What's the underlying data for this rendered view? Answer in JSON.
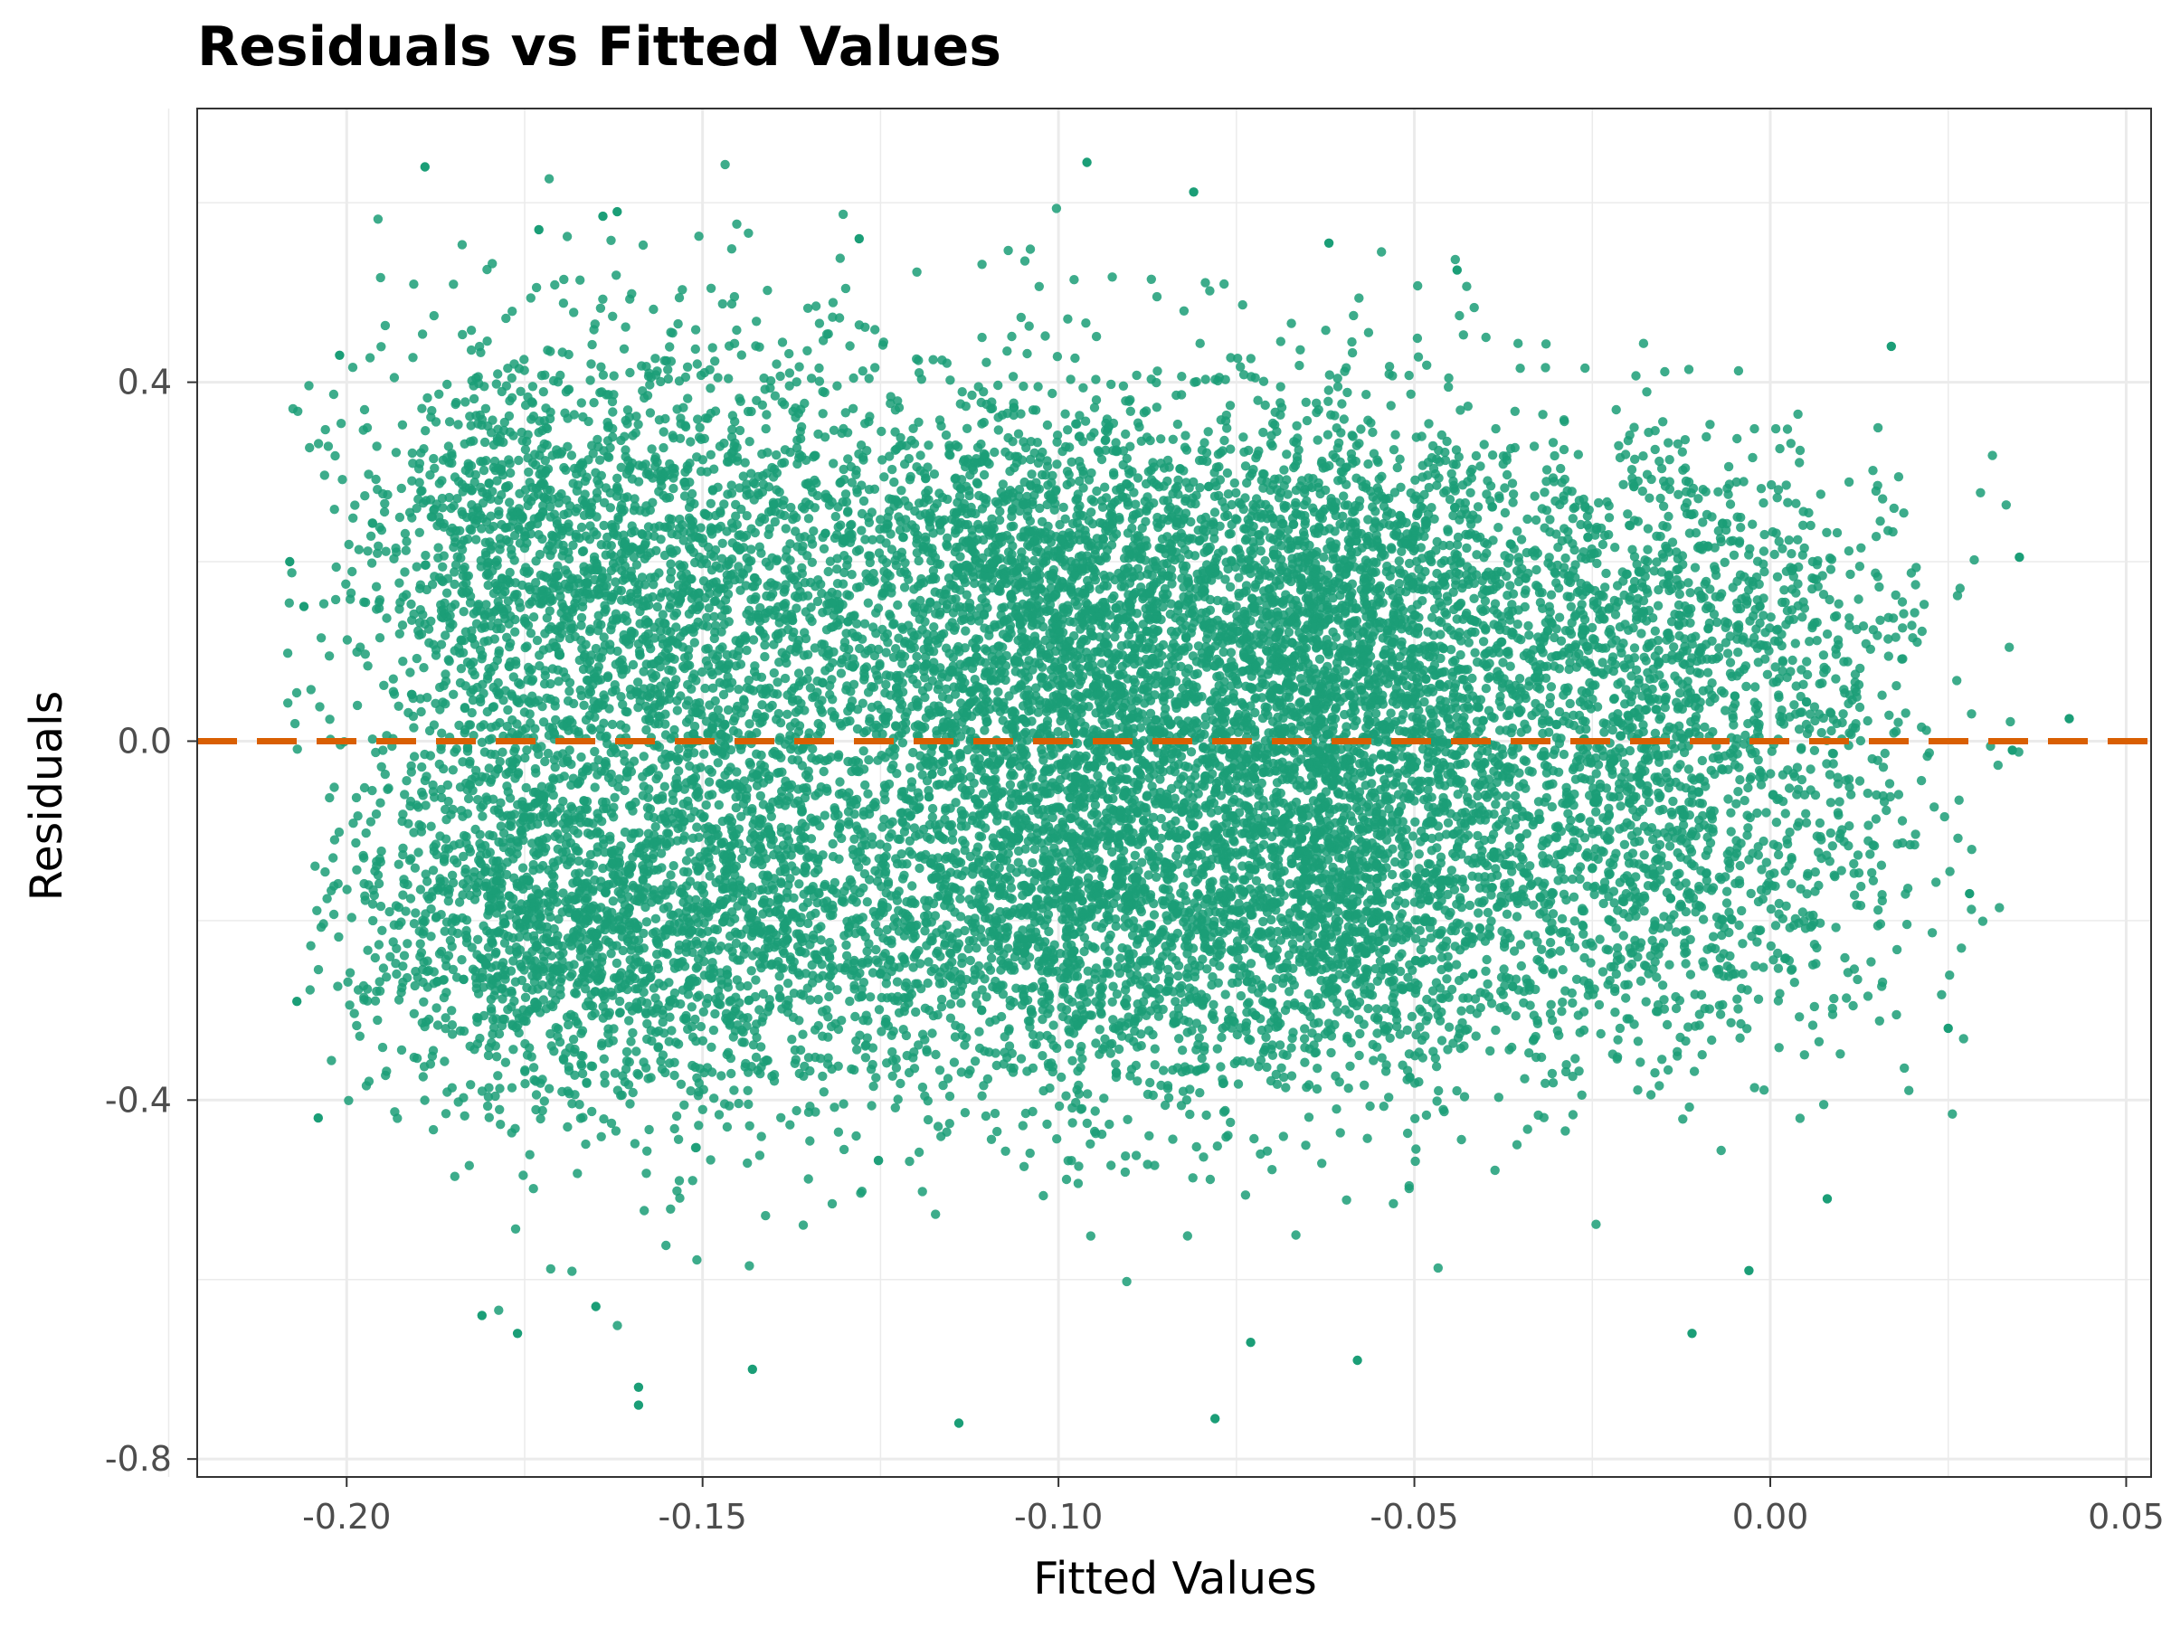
{
  "chart_data": {
    "type": "scatter",
    "title": "Residuals vs Fitted Values",
    "xlabel": "Fitted Values",
    "ylabel": "Residuals",
    "xlim": [
      -0.221,
      0.0535
    ],
    "ylim": [
      -0.82,
      0.705
    ],
    "x_ticks": [
      -0.2,
      -0.15,
      -0.1,
      -0.05,
      0.0,
      0.05
    ],
    "x_tick_labels": [
      "-0.20",
      "-0.15",
      "-0.10",
      "-0.05",
      "0.00",
      "0.05"
    ],
    "y_ticks": [
      -0.8,
      -0.4,
      0.0,
      0.4
    ],
    "y_tick_labels": [
      "-0.8",
      "-0.4",
      "0.0",
      "0.4"
    ],
    "grid": true,
    "point_color": "#1b9e77",
    "reference_line": {
      "y": 0.0,
      "style": "dashed",
      "color": "#d95f02"
    },
    "clusters": [
      {
        "x_center": -0.175,
        "x_sd": 0.013,
        "upper_y_center": 0.19,
        "upper_y_sd": 0.13,
        "lower_y_center": -0.19,
        "lower_y_sd": 0.11,
        "n": 2400
      },
      {
        "x_center": -0.145,
        "x_sd": 0.015,
        "upper_y_center": 0.18,
        "upper_y_sd": 0.14,
        "lower_y_center": -0.19,
        "lower_y_sd": 0.12,
        "n": 2600
      },
      {
        "x_center": -0.1,
        "x_sd": 0.016,
        "upper_y_center": 0.15,
        "upper_y_sd": 0.13,
        "lower_y_center": -0.16,
        "lower_y_sd": 0.13,
        "n": 4200
      },
      {
        "x_center": -0.06,
        "x_sd": 0.015,
        "upper_y_center": 0.14,
        "upper_y_sd": 0.12,
        "lower_y_center": -0.15,
        "lower_y_sd": 0.12,
        "n": 3800
      },
      {
        "x_center": -0.02,
        "x_sd": 0.013,
        "upper_y_center": 0.13,
        "upper_y_sd": 0.11,
        "lower_y_center": -0.14,
        "lower_y_sd": 0.12,
        "n": 1600
      },
      {
        "x_center": 0.005,
        "x_sd": 0.011,
        "upper_y_center": 0.12,
        "upper_y_sd": 0.1,
        "lower_y_center": -0.14,
        "lower_y_sd": 0.11,
        "n": 500
      }
    ],
    "outliers": [
      {
        "x": -0.189,
        "y": 0.64
      },
      {
        "x": -0.096,
        "y": 0.645
      },
      {
        "x": -0.081,
        "y": 0.612
      },
      {
        "x": -0.162,
        "y": 0.59
      },
      {
        "x": -0.164,
        "y": 0.585
      },
      {
        "x": -0.173,
        "y": 0.57
      },
      {
        "x": -0.062,
        "y": 0.555
      },
      {
        "x": -0.044,
        "y": 0.525
      },
      {
        "x": -0.128,
        "y": 0.56
      },
      {
        "x": 0.017,
        "y": 0.44
      },
      {
        "x": 0.035,
        "y": 0.205
      },
      {
        "x": 0.042,
        "y": 0.025
      },
      {
        "x": 0.034,
        "y": -0.01
      },
      {
        "x": 0.028,
        "y": -0.17
      },
      {
        "x": 0.025,
        "y": -0.32
      },
      {
        "x": 0.008,
        "y": -0.51
      },
      {
        "x": -0.011,
        "y": -0.66
      },
      {
        "x": -0.078,
        "y": -0.755
      },
      {
        "x": -0.114,
        "y": -0.76
      },
      {
        "x": -0.159,
        "y": -0.72
      },
      {
        "x": -0.159,
        "y": -0.74
      },
      {
        "x": -0.143,
        "y": -0.7
      },
      {
        "x": -0.176,
        "y": -0.66
      },
      {
        "x": -0.181,
        "y": -0.64
      },
      {
        "x": -0.165,
        "y": -0.63
      },
      {
        "x": -0.073,
        "y": -0.67
      },
      {
        "x": -0.058,
        "y": -0.69
      },
      {
        "x": -0.003,
        "y": -0.59
      },
      {
        "x": -0.204,
        "y": -0.42
      },
      {
        "x": -0.207,
        "y": -0.29
      },
      {
        "x": -0.206,
        "y": 0.15
      },
      {
        "x": -0.208,
        "y": 0.2
      },
      {
        "x": -0.201,
        "y": 0.43
      }
    ]
  }
}
